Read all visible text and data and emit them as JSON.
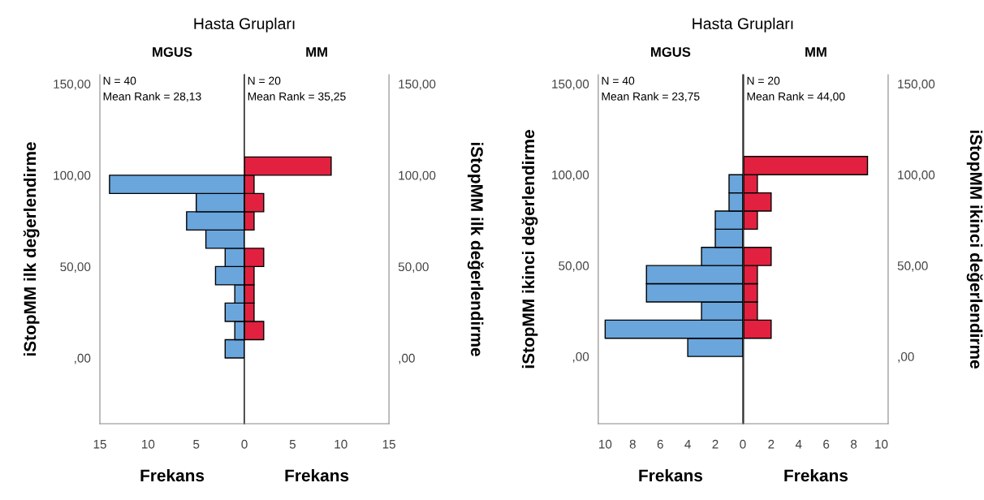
{
  "chart_data": [
    {
      "type": "histogram",
      "orientation": "horizontal",
      "title": "Hasta Grupları",
      "subtitle": "MGUS",
      "xlabel": "Frekans",
      "ylabel": "iStopMM ilk değerlendirme",
      "color": "#6aa5dc",
      "bins": [
        0,
        10,
        20,
        30,
        40,
        50,
        60,
        70,
        80,
        90,
        100
      ],
      "values": [
        2,
        1,
        2,
        1,
        3,
        2,
        4,
        6,
        5,
        14
      ],
      "xlim": [
        15,
        0
      ],
      "xticks": [
        15,
        10,
        5,
        0
      ],
      "ylim": [
        -36,
        155
      ],
      "yticks": [
        {
          "value": 0,
          "label": ",00"
        },
        {
          "value": 50,
          "label": "50,00"
        },
        {
          "value": 100,
          "label": "100,00"
        },
        {
          "value": 150,
          "label": "150,00"
        }
      ],
      "annotations": [
        "N = 40",
        "Mean Rank = 28,13"
      ]
    },
    {
      "type": "histogram",
      "orientation": "horizontal",
      "subtitle": "MM",
      "xlabel": "Frekans",
      "ylabel": "iStopMM ilk değerlendirme",
      "color": "#e2203f",
      "bins": [
        10,
        20,
        30,
        40,
        50,
        60,
        70,
        80,
        90,
        100,
        110
      ],
      "values": [
        2,
        1,
        1,
        1,
        2,
        0,
        1,
        2,
        1,
        9
      ],
      "xlim": [
        0,
        15
      ],
      "xticks": [
        {
          "value": 0,
          "label": null
        },
        5,
        10,
        15
      ],
      "ylim": [
        -36,
        155
      ],
      "yticks": [
        {
          "value": 0,
          "label": ",00"
        },
        {
          "value": 50,
          "label": "50,00"
        },
        {
          "value": 100,
          "label": "100,00"
        },
        {
          "value": 150,
          "label": "150,00"
        }
      ],
      "annotations": [
        "N = 20",
        "Mean Rank = 35,25"
      ]
    },
    {
      "type": "histogram",
      "orientation": "horizontal",
      "title": "Hasta Grupları",
      "subtitle": "MGUS",
      "xlabel": "Frekans",
      "ylabel": "iStopMM ikinci değerlendirme",
      "color": "#6aa5dc",
      "bins": [
        0,
        10,
        20,
        30,
        40,
        50,
        60,
        70,
        80,
        90,
        100
      ],
      "values": [
        4,
        10,
        3,
        7,
        7,
        3,
        2,
        2,
        1,
        1
      ],
      "xlim": [
        10.5,
        0
      ],
      "xticks": [
        10,
        8,
        6,
        4,
        2,
        0
      ],
      "ylim": [
        -37,
        155
      ],
      "yticks": [
        {
          "value": 0,
          "label": ",00"
        },
        {
          "value": 50,
          "label": "50,00"
        },
        {
          "value": 100,
          "label": "100,00"
        },
        {
          "value": 150,
          "label": "150,00"
        }
      ],
      "annotations": [
        "N = 40",
        "Mean Rank = 23,75"
      ]
    },
    {
      "type": "histogram",
      "orientation": "horizontal",
      "subtitle": "MM",
      "xlabel": "Frekans",
      "ylabel": "iStopMM ikinci değerlendirme",
      "color": "#e2203f",
      "bins": [
        10,
        20,
        30,
        40,
        50,
        60,
        70,
        80,
        90,
        100,
        110
      ],
      "values": [
        2,
        1,
        1,
        1,
        2,
        0,
        1,
        2,
        1,
        9
      ],
      "xlim": [
        0,
        10.5
      ],
      "xticks": [
        {
          "value": 0,
          "label": null
        },
        2,
        4,
        6,
        8,
        10
      ],
      "ylim": [
        -37,
        155
      ],
      "yticks": [
        {
          "value": 0,
          "label": ",00"
        },
        {
          "value": 50,
          "label": "50,00"
        },
        {
          "value": 100,
          "label": "100,00"
        },
        {
          "value": 150,
          "label": "150,00"
        }
      ],
      "annotations": [
        "N = 20",
        "Mean Rank = 44,00"
      ]
    }
  ]
}
